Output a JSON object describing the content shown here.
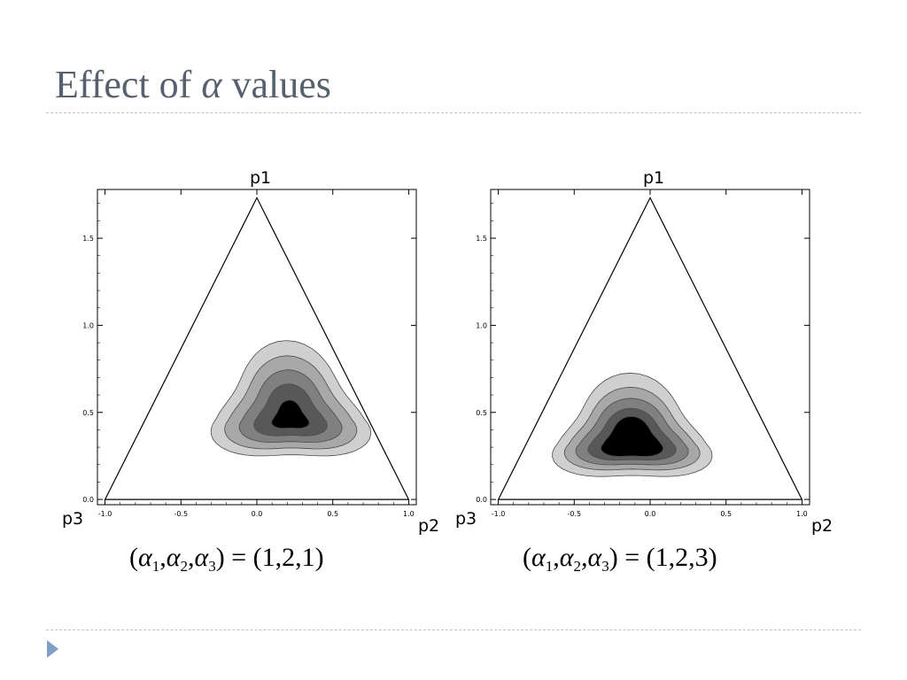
{
  "slide": {
    "title_prefix": "Effect of",
    "title_symbol": "α",
    "title_suffix": "values"
  },
  "plots": [
    {
      "id": "left",
      "alpha_values": "(1,2,1)",
      "vertex_labels": {
        "top": "p1",
        "left": "p3",
        "right": "p2"
      },
      "x_ticks": [
        "-1.0",
        "-0.5",
        "0.0",
        "0.5",
        "1.0"
      ],
      "y_ticks": [
        "0.0",
        "0.5",
        "1.0",
        "1.5"
      ],
      "xlim": [
        -1.05,
        1.05
      ],
      "ylim": [
        -0.03,
        1.78
      ],
      "contour_fills": [
        "#cfcfcf",
        "#a8a8a8",
        "#808080",
        "#585858",
        "#000000"
      ]
    },
    {
      "id": "right",
      "alpha_values": "(1,2,3)",
      "vertex_labels": {
        "top": "p1",
        "left": "p3",
        "right": "p2"
      },
      "x_ticks": [
        "-1.0",
        "-0.5",
        "0.0",
        "0.5",
        "1.0"
      ],
      "y_ticks": [
        "0.0",
        "0.5",
        "1.0",
        "1.5"
      ],
      "xlim": [
        -1.05,
        1.05
      ],
      "ylim": [
        -0.03,
        1.78
      ],
      "contour_fills": [
        "#cfcfcf",
        "#a8a8a8",
        "#808080",
        "#585858",
        "#000000"
      ]
    }
  ],
  "caption": {
    "symbol": "α",
    "sub1": "1",
    "sub2": "2",
    "sub3": "3",
    "comma": ",",
    "open": "(",
    "close": ")",
    "equals": "="
  }
}
